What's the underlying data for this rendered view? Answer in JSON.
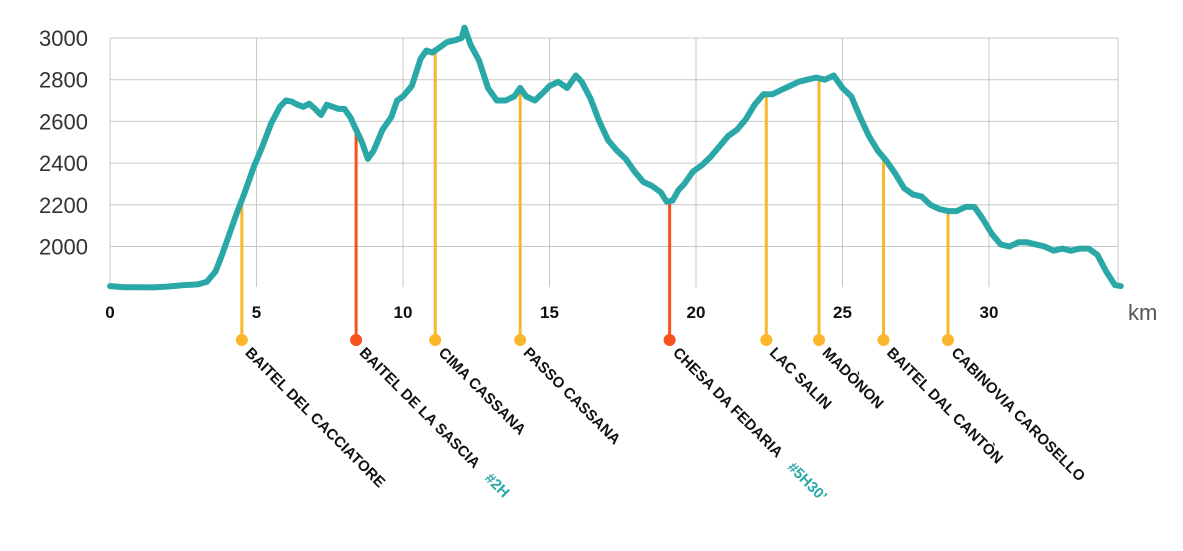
{
  "chart_data": {
    "type": "line",
    "xlabel": "km",
    "ylabel": "",
    "xlim": [
      0,
      34.5
    ],
    "ylim": [
      1800,
      3000
    ],
    "x_ticks": [
      0,
      5,
      10,
      15,
      20,
      25,
      30
    ],
    "y_ticks": [
      2000,
      2200,
      2400,
      2600,
      2800,
      3000
    ],
    "grid": true,
    "colors": {
      "line": "#2aa8a8",
      "stop": "#fbb72c",
      "overnight": "#f5521e",
      "time": "#2aa8a8",
      "grid": "#c8c8c8"
    },
    "series": [
      {
        "x": [
          0,
          0.5,
          1,
          1.5,
          2,
          2.5,
          3,
          3.3,
          3.6,
          3.8,
          4.0,
          4.3,
          4.6,
          4.9,
          5.2,
          5.5,
          5.8,
          6.0,
          6.2,
          6.4,
          6.6,
          6.8,
          7.0,
          7.2,
          7.4,
          7.6,
          7.8,
          8.0,
          8.2,
          8.4,
          8.6,
          8.8,
          9.0,
          9.3,
          9.6,
          9.8,
          10.0,
          10.3,
          10.6,
          10.8,
          11.0,
          11.2,
          11.5,
          11.8,
          12.0,
          12.1,
          12.3,
          12.6,
          12.9,
          13.2,
          13.5,
          13.8,
          14.0,
          14.2,
          14.5,
          14.8,
          15.0,
          15.3,
          15.6,
          15.9,
          16.1,
          16.4,
          16.7,
          17.0,
          17.3,
          17.6,
          17.9,
          18.2,
          18.5,
          18.8,
          19.0,
          19.2,
          19.4,
          19.6,
          19.9,
          20.2,
          20.5,
          20.8,
          21.1,
          21.4,
          21.7,
          22.0,
          22.3,
          22.6,
          22.9,
          23.2,
          23.5,
          23.8,
          24.1,
          24.4,
          24.7,
          25.0,
          25.3,
          25.6,
          25.9,
          26.2,
          26.5,
          26.8,
          27.1,
          27.4,
          27.7,
          28.0,
          28.3,
          28.6,
          28.9,
          29.2,
          29.5,
          29.8,
          30.1,
          30.4,
          30.7,
          31.0,
          31.3,
          31.6,
          31.9,
          32.2,
          32.5,
          32.8,
          33.1,
          33.4,
          33.7,
          34.0,
          34.3,
          34.5
        ],
        "y": [
          1810,
          1805,
          1805,
          1804,
          1808,
          1815,
          1818,
          1830,
          1880,
          1950,
          2030,
          2150,
          2260,
          2380,
          2480,
          2590,
          2670,
          2700,
          2695,
          2680,
          2670,
          2685,
          2660,
          2630,
          2680,
          2670,
          2660,
          2660,
          2620,
          2560,
          2500,
          2420,
          2460,
          2560,
          2620,
          2700,
          2720,
          2770,
          2900,
          2940,
          2930,
          2950,
          2980,
          2990,
          3000,
          3050,
          2970,
          2890,
          2760,
          2700,
          2700,
          2720,
          2760,
          2720,
          2700,
          2740,
          2770,
          2790,
          2760,
          2820,
          2790,
          2710,
          2600,
          2510,
          2460,
          2420,
          2360,
          2310,
          2290,
          2260,
          2215,
          2220,
          2270,
          2300,
          2360,
          2390,
          2430,
          2480,
          2530,
          2560,
          2610,
          2680,
          2730,
          2730,
          2750,
          2770,
          2790,
          2800,
          2810,
          2800,
          2820,
          2760,
          2720,
          2620,
          2530,
          2460,
          2410,
          2350,
          2280,
          2250,
          2240,
          2200,
          2180,
          2170,
          2170,
          2190,
          2190,
          2130,
          2060,
          2010,
          2000,
          2020,
          2020,
          2010,
          2000,
          1980,
          1990,
          1980,
          1990,
          1990,
          1960,
          1880,
          1815,
          1810
        ]
      }
    ],
    "waypoints": [
      {
        "km": 4.5,
        "name": "BAITEL DEL CACCIATORE",
        "kind": "stop"
      },
      {
        "km": 8.4,
        "name": "BAITEL DE LA SASCIA",
        "kind": "overnight",
        "time": "#2H"
      },
      {
        "km": 11.1,
        "name": "CIMA CASSANA",
        "kind": "stop"
      },
      {
        "km": 14.0,
        "name": "PASSO CASSANA",
        "kind": "stop"
      },
      {
        "km": 19.1,
        "name": "CHESA DA FEDARIA",
        "kind": "overnight",
        "time": "#5H30’"
      },
      {
        "km": 22.4,
        "name": "LAC SALIN",
        "kind": "stop"
      },
      {
        "km": 24.2,
        "name": "MADÒNON",
        "kind": "stop"
      },
      {
        "km": 26.4,
        "name": "BAITEL DAL CANTÒN",
        "kind": "stop"
      },
      {
        "km": 28.6,
        "name": "CABINOVIA CAROSELLO",
        "kind": "stop"
      }
    ]
  }
}
